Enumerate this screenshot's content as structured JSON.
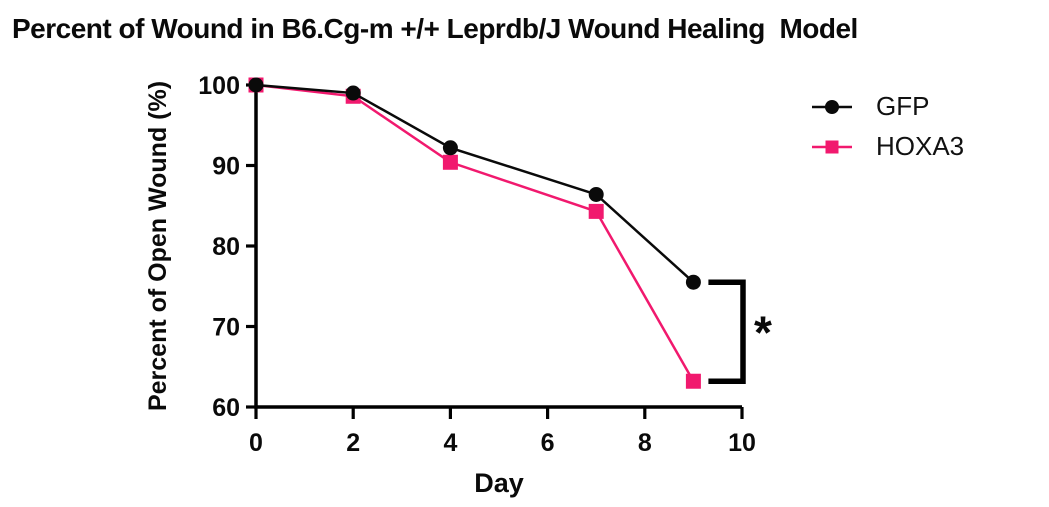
{
  "title": "Percent of Wound in B6.Cg-m +/+ Leprdb/J Wound Healing  Model",
  "colors": {
    "axis": "#000000",
    "gfp": "#0a0a0a",
    "hoxa3": "#F1196E",
    "annotation": "#000000"
  },
  "legend": {
    "items": [
      {
        "label": "GFP",
        "marker": "circle",
        "color": "#0a0a0a"
      },
      {
        "label": "HOXA3",
        "marker": "square",
        "color": "#F1196E"
      }
    ]
  },
  "chart_data": {
    "type": "line",
    "title": "Percent of Wound in B6.Cg-m +/+ Leprdb/J Wound Healing  Model",
    "xlabel": "Day",
    "ylabel": "Percent of Open Wound (%)",
    "x": [
      0,
      2,
      4,
      7,
      9
    ],
    "series": [
      {
        "name": "GFP",
        "marker": "circle",
        "color": "#0a0a0a",
        "values": [
          100,
          99.0,
          92.2,
          86.4,
          75.5
        ]
      },
      {
        "name": "HOXA3",
        "marker": "square",
        "color": "#F1196E",
        "values": [
          100,
          98.6,
          90.4,
          84.3,
          63.2
        ]
      }
    ],
    "xlim": [
      0,
      10
    ],
    "ylim": [
      60,
      100
    ],
    "xticks": [
      0,
      2,
      4,
      6,
      8,
      10
    ],
    "yticks": [
      60,
      70,
      80,
      90,
      100
    ],
    "grid": false,
    "legend_position": "right",
    "annotation": {
      "type": "significance-bracket",
      "between_series": [
        "GFP",
        "HOXA3"
      ],
      "at_x": 9,
      "bracket_at_x": 10,
      "label": "*"
    }
  }
}
